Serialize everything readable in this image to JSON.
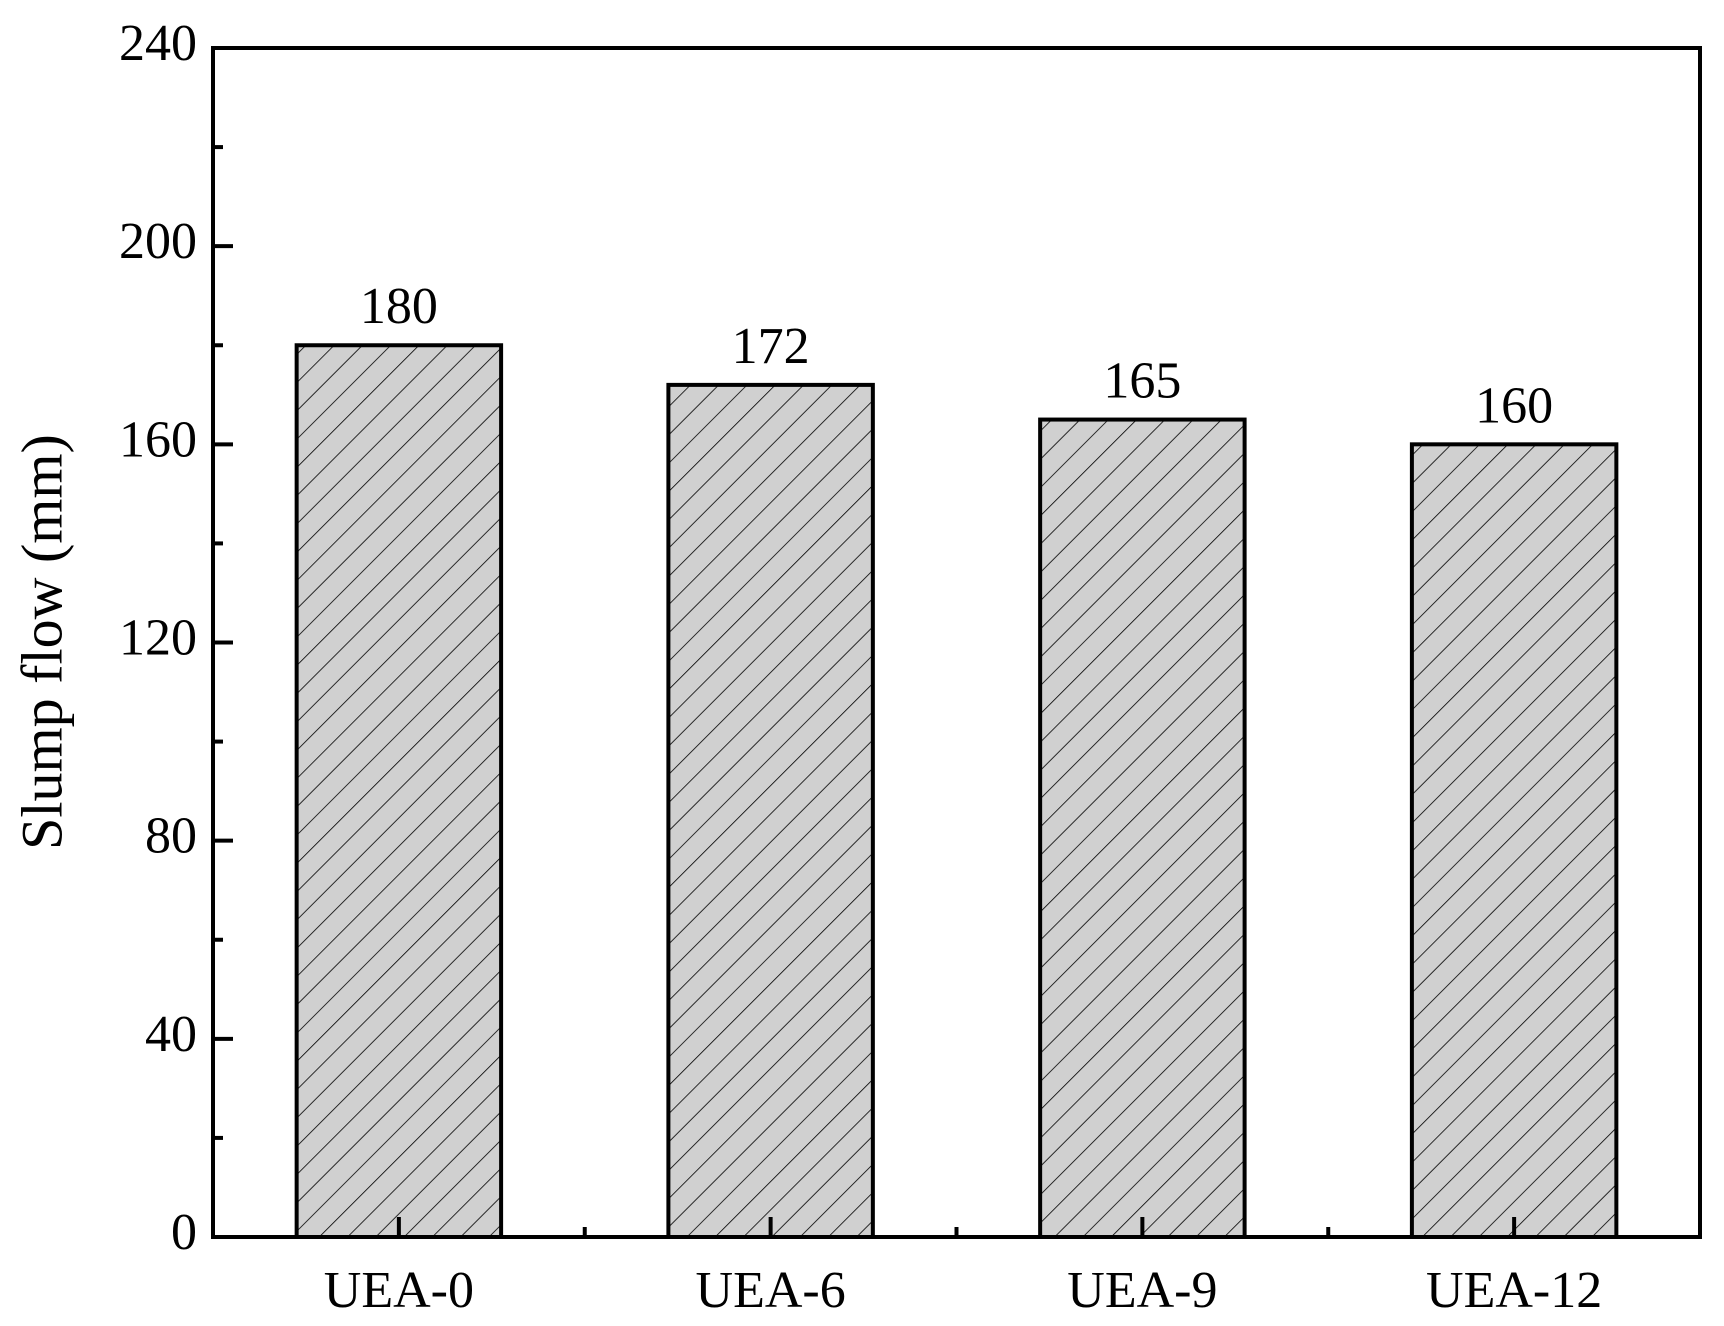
{
  "chart_data": {
    "type": "bar",
    "y_label": "Slump flow (mm)",
    "categories": [
      "UEA-0",
      "UEA-6",
      "UEA-9",
      "UEA-12"
    ],
    "values": [
      180,
      172,
      165,
      160
    ],
    "color": "#d0d0d0",
    "ylim": [
      0,
      240
    ],
    "yticks": [
      0,
      40,
      80,
      120,
      160,
      200,
      240
    ],
    "grid": false
  }
}
